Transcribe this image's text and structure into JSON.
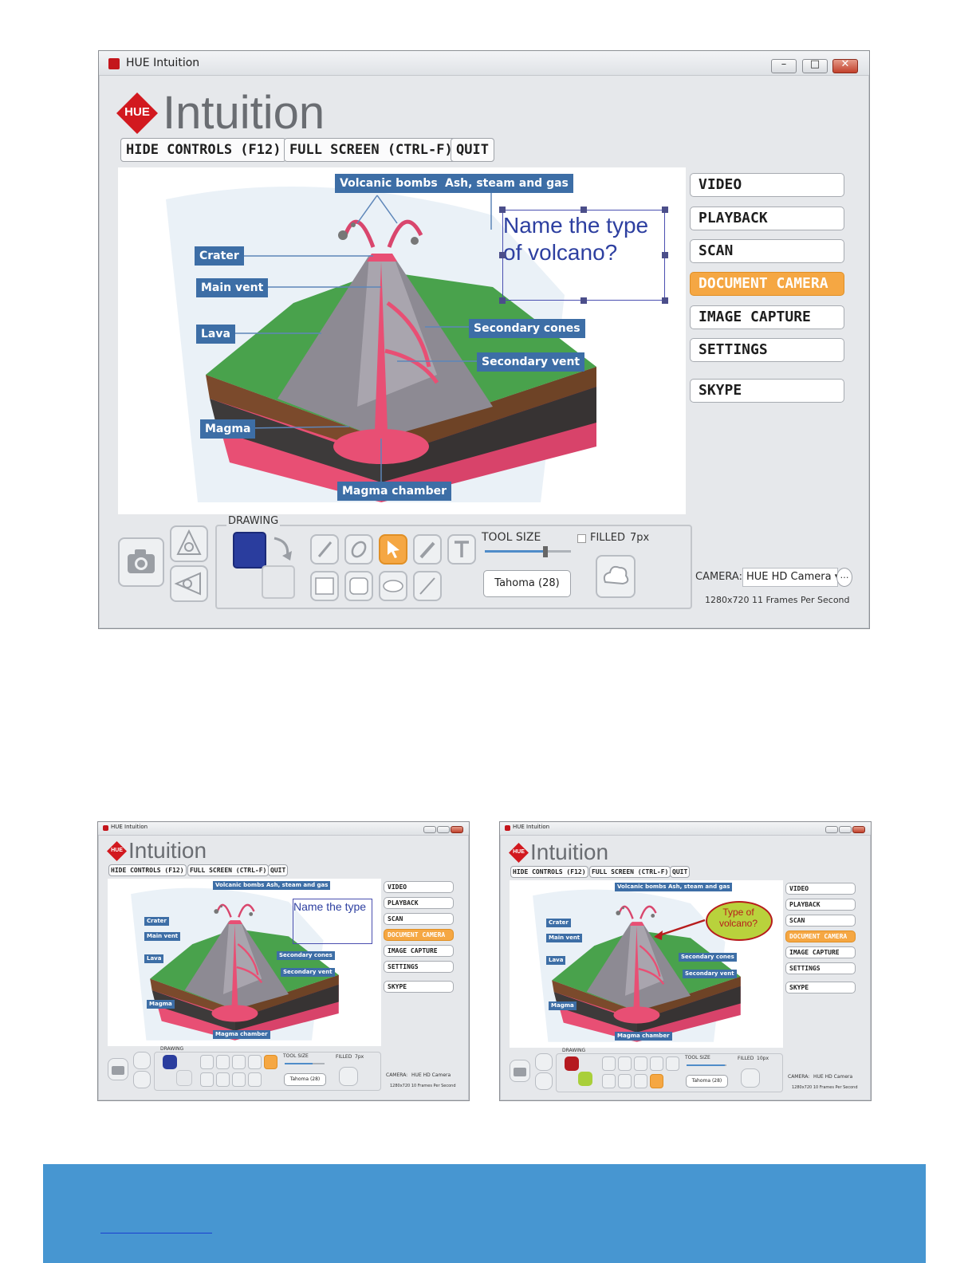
{
  "app": {
    "window_title": "HUE Intuition",
    "logo_badge": "HUE",
    "logo_text": "Intuition",
    "window_controls": {
      "minimize": "–",
      "maximize": "□",
      "close": "✕"
    }
  },
  "top_controls": [
    "HIDE CONTROLS (F12)",
    "FULL SCREEN (CTRL-F)",
    "QUIT"
  ],
  "side_menu": [
    {
      "label": "VIDEO",
      "active": false
    },
    {
      "label": "PLAYBACK",
      "active": false
    },
    {
      "label": "SCAN",
      "active": false
    },
    {
      "label": "DOCUMENT CAMERA",
      "active": true
    },
    {
      "label": "IMAGE CAPTURE",
      "active": false
    },
    {
      "label": "SETTINGS",
      "active": false
    },
    {
      "label": "SKYPE",
      "active": false
    }
  ],
  "diagram_labels": {
    "volcanic_bombs": "Volcanic bombs",
    "ash_steam_gas": "Ash, steam and gas",
    "crater": "Crater",
    "main_vent": "Main vent",
    "lava": "Lava",
    "secondary_cones": "Secondary cones",
    "secondary_vent": "Secondary vent",
    "magma": "Magma",
    "magma_chamber": "Magma chamber"
  },
  "annotations": {
    "main_note": "Name the type of volcano?",
    "second_note": "Name the type",
    "third_note": "Type of volcano?"
  },
  "drawing_panel": {
    "title": "DRAWING",
    "tool_size_label": "TOOL SIZE",
    "filled_label": "FILLED",
    "size_main": "7px",
    "size_second": "7px",
    "size_third": "10px",
    "font": "Tahoma (28)",
    "tool_size_fraction": 0.7,
    "tool_size_fraction_third": 0.95
  },
  "camera": {
    "label": "CAMERA:",
    "selected": "HUE HD Camera",
    "info_main": "1280x720 11 Frames Per Second",
    "info_small": "1280x720 10 Frames Per Second"
  },
  "colors": {
    "accent_orange": "#f5a743",
    "label_blue": "#3d6ea6",
    "swatch_blue": "#2a3d9e",
    "swatch_red": "#b5191f",
    "swatch_green": "#a9cf3a",
    "arrow_red": "#b71c1c",
    "bubble_fill": "#b9d23c",
    "banner_blue": "#4796d1"
  },
  "icons": [
    "camera-icon",
    "capture-icon",
    "rotate-icon",
    "brush-icon",
    "eraser-icon",
    "pointer-icon",
    "pen-icon",
    "text-icon",
    "rectangle-icon",
    "rounded-rect-icon",
    "ellipse-icon",
    "line-icon",
    "cloud-icon",
    "undo-arrow-icon"
  ]
}
